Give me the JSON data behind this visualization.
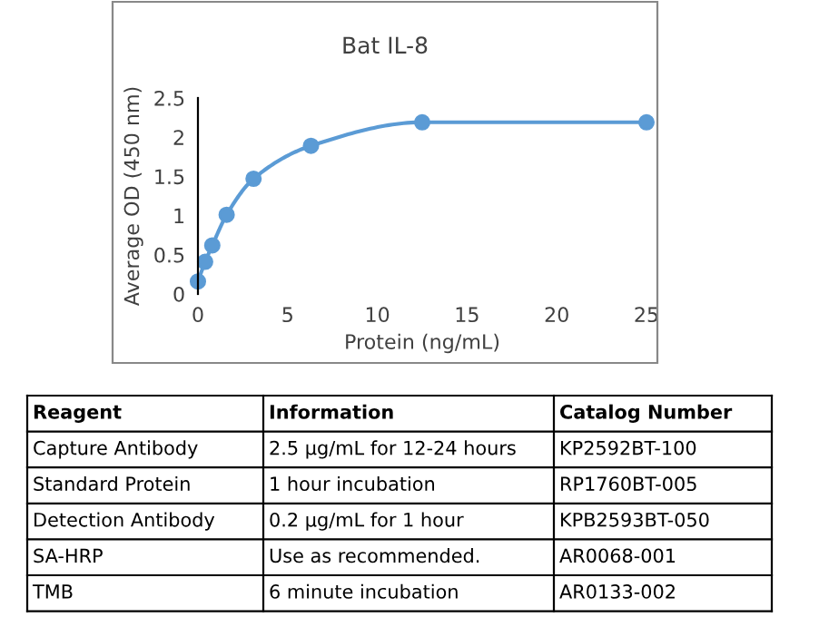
{
  "chart_data": {
    "type": "line",
    "title": "Bat IL-8",
    "xlabel": "Protein (ng/mL)",
    "ylabel": "Average OD (450 nm)",
    "x": [
      0,
      0.4,
      0.8,
      1.6,
      3.1,
      6.3,
      12.5,
      25
    ],
    "series": [
      {
        "color": "#5b9bd5",
        "values": [
          0.16,
          0.41,
          0.62,
          1.01,
          1.47,
          1.89,
          2.19,
          2.19
        ]
      }
    ],
    "xlim": [
      0,
      25
    ],
    "xticks": [
      0,
      5,
      10,
      15,
      20,
      25
    ],
    "ylim": [
      0,
      2.5
    ],
    "yticks": [
      0,
      0.5,
      1,
      1.5,
      2,
      2.5
    ],
    "marker": "circle",
    "line_style": "solid",
    "annotations": [
      "Reagent",
      "Information",
      "Catalog Number",
      "Capture Antibody",
      "2.5 µg/mL for 12-24 hours",
      "KP2592BT-100",
      "Standard Protein",
      "1 hour incubation",
      "RP1760BT-005",
      "Detection Antibody",
      "0.2 µg/mL for 1 hour",
      "KPB2593BT-050",
      "SA-HRP",
      "Use as recommended.",
      "AR0068-001",
      "TMB",
      "6 minute incubation",
      "AR0133-002"
    ]
  }
}
